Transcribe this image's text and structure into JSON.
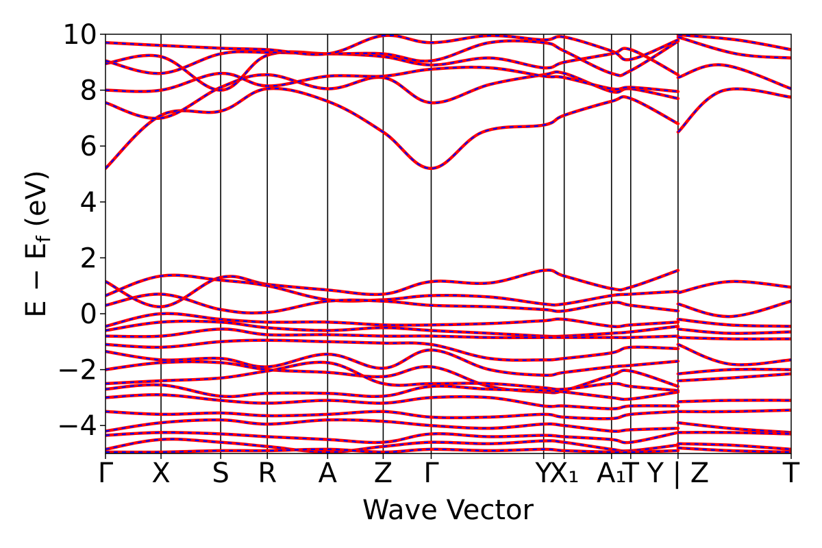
{
  "chart_data": {
    "type": "line",
    "title": "",
    "xlabel": "Wave Vector",
    "ylabel": "E − E_f (eV)",
    "ylabel_main": "E − E",
    "ylabel_sub": "f",
    "ylabel_tail": " (eV)",
    "ylim": [
      -5,
      10
    ],
    "yticks": [
      -4,
      -2,
      0,
      2,
      4,
      6,
      8,
      10
    ],
    "ytick_labels": [
      "−4",
      "−2",
      "0",
      "2",
      "4",
      "6",
      "8",
      "10"
    ],
    "grid": false,
    "legend": "none",
    "line_style": "red solid bands overlaid with blue dashed bands",
    "colors": {
      "band_solid": "#ff0000",
      "band_dashed": "#0000ff",
      "axes": "#000000"
    },
    "x_range": [
      0,
      100
    ],
    "kpoints": [
      {
        "label": "Γ",
        "x": 0
      },
      {
        "label": "X",
        "x": 8.1
      },
      {
        "label": "S",
        "x": 16.8
      },
      {
        "label": "R",
        "x": 23.6
      },
      {
        "label": "A",
        "x": 32.4
      },
      {
        "label": "Z",
        "x": 40.5
      },
      {
        "label": "Γ",
        "x": 47.5
      },
      {
        "label": "Y",
        "x": 63.9
      },
      {
        "label": "X₁",
        "x": 66.9
      },
      {
        "label": "A₁",
        "x": 73.8
      },
      {
        "label": "T",
        "x": 76.6
      },
      {
        "label": "Y | Z",
        "x": 83.5
      },
      {
        "label": "T",
        "x": 100
      }
    ],
    "series": [
      {
        "x": [
          0,
          8.1,
          16.8,
          23.6,
          32.4,
          40.5,
          47.5,
          55,
          63.9,
          66.9,
          73.8,
          76.6,
          83.5
        ],
        "y": [
          5.2,
          7.1,
          7.25,
          8.05,
          7.6,
          6.5,
          5.2,
          6.5,
          6.75,
          7.1,
          7.6,
          7.7,
          6.8
        ]
      },
      {
        "x": [
          83.5,
          90,
          100
        ],
        "y": [
          6.5,
          7.98,
          7.75
        ]
      },
      {
        "x": [
          0,
          8.1,
          16.8,
          23.6,
          32.4,
          40.5,
          47.5,
          56,
          63.9,
          66.9,
          73.8,
          76.6,
          83.5
        ],
        "y": [
          7.55,
          7.0,
          8.1,
          8.55,
          8.05,
          8.45,
          7.55,
          8.2,
          8.55,
          8.6,
          7.95,
          8.05,
          7.7
        ]
      },
      {
        "x": [
          83.5,
          90,
          100
        ],
        "y": [
          8.45,
          8.9,
          8.05
        ]
      },
      {
        "x": [
          0,
          8.1,
          16.8,
          23.6,
          32.4,
          40.5,
          47.5,
          56,
          63.9,
          66.9,
          73.8,
          76.6,
          83.5
        ],
        "y": [
          8.0,
          8.0,
          8.6,
          8.15,
          8.5,
          8.5,
          8.75,
          8.8,
          8.5,
          8.45,
          8.05,
          8.1,
          7.95
        ]
      },
      {
        "x": [
          0,
          8.1,
          16.8,
          23.6,
          32.4,
          40.5,
          47.5,
          56,
          63.9,
          66.9,
          73.8,
          76.6,
          83.5
        ],
        "y": [
          8.95,
          9.2,
          8.0,
          9.25,
          9.3,
          9.2,
          8.9,
          9.15,
          8.8,
          9.0,
          9.3,
          9.45,
          8.55
        ]
      },
      {
        "x": [
          83.5,
          92,
          100
        ],
        "y": [
          9.9,
          9.3,
          9.15
        ]
      },
      {
        "x": [
          0,
          8.1,
          16.8,
          23.6,
          32.4,
          40.5,
          47.5,
          56,
          63.9,
          66.9,
          73.8,
          76.6,
          83.5
        ],
        "y": [
          9.05,
          8.6,
          9.3,
          9.35,
          9.3,
          9.3,
          9.05,
          9.7,
          9.7,
          9.4,
          8.6,
          8.7,
          9.75
        ]
      },
      {
        "x": [
          0,
          8.1,
          16.8,
          23.6,
          32.4,
          40.5,
          47.5,
          56,
          63.9,
          66.9,
          73.8,
          76.6,
          83.5
        ],
        "y": [
          9.7,
          9.6,
          9.5,
          9.45,
          9.3,
          9.95,
          9.7,
          9.95,
          9.8,
          9.9,
          9.4,
          9.1,
          9.8
        ]
      },
      {
        "x": [
          83.5,
          92,
          100
        ],
        "y": [
          9.98,
          9.8,
          9.45
        ]
      },
      {
        "x": [
          0,
          8.1,
          16.8,
          23.6,
          32.4,
          40.5,
          47.5,
          56,
          63.9,
          66.9,
          73.8,
          76.6,
          83.5
        ],
        "y": [
          1.15,
          0.25,
          1.3,
          1.05,
          0.85,
          0.7,
          1.15,
          1.1,
          1.55,
          1.35,
          0.9,
          0.95,
          1.55
        ]
      },
      {
        "x": [
          83.5,
          91,
          100
        ],
        "y": [
          0.75,
          1.15,
          0.95
        ]
      },
      {
        "x": [
          0,
          8.1,
          16.8,
          23.6,
          32.4,
          40.5,
          47.5,
          56,
          63.9,
          66.9,
          73.8,
          76.6,
          83.5
        ],
        "y": [
          0.65,
          1.35,
          1.2,
          1.0,
          0.5,
          0.5,
          0.65,
          0.6,
          0.35,
          0.35,
          0.65,
          0.7,
          0.8
        ]
      },
      {
        "x": [
          83.5,
          91,
          100
        ],
        "y": [
          0.35,
          -0.1,
          0.45
        ]
      },
      {
        "x": [
          0,
          8.1,
          16.8,
          23.6,
          32.4,
          40.5,
          47.5,
          56,
          63.9,
          66.9,
          73.8,
          76.6,
          83.5
        ],
        "y": [
          0.3,
          0.7,
          0.15,
          0.05,
          0.45,
          0.45,
          0.3,
          0.25,
          0.15,
          0.1,
          0.4,
          0.3,
          0.1
        ]
      },
      {
        "x": [
          0,
          8.1,
          16.8,
          23.6,
          32.4,
          40.5,
          47.5,
          56,
          63.9,
          66.9,
          73.8,
          76.6,
          83.5
        ],
        "y": [
          -0.45,
          0.0,
          -0.2,
          -0.3,
          -0.3,
          -0.4,
          -0.4,
          -0.35,
          -0.25,
          -0.2,
          -0.45,
          -0.4,
          -0.3
        ]
      },
      {
        "x": [
          83.5,
          91,
          100
        ],
        "y": [
          -0.2,
          -0.4,
          -0.45
        ]
      },
      {
        "x": [
          0,
          8.1,
          16.8,
          23.6,
          32.4,
          40.5,
          47.5,
          56,
          63.9,
          66.9,
          73.8,
          76.6,
          83.5
        ],
        "y": [
          -0.6,
          -0.3,
          -0.3,
          -0.5,
          -0.6,
          -0.5,
          -0.6,
          -0.7,
          -0.8,
          -0.8,
          -0.7,
          -0.65,
          -0.45
        ]
      },
      {
        "x": [
          83.5,
          91,
          100
        ],
        "y": [
          -0.55,
          -0.7,
          -0.65
        ]
      },
      {
        "x": [
          0,
          8.1,
          16.8,
          23.6,
          32.4,
          40.5,
          47.5,
          56,
          63.9,
          66.9,
          73.8,
          76.6,
          83.5
        ],
        "y": [
          -0.8,
          -0.8,
          -0.55,
          -0.75,
          -0.75,
          -0.8,
          -0.8,
          -0.85,
          -0.85,
          -0.85,
          -0.85,
          -0.85,
          -0.8
        ]
      },
      {
        "x": [
          83.5,
          91,
          100
        ],
        "y": [
          -0.85,
          -0.9,
          -0.9
        ]
      },
      {
        "x": [
          0,
          8.1,
          16.8,
          23.6,
          32.4,
          40.5,
          47.5,
          56,
          63.9,
          66.9,
          73.8,
          76.6,
          83.5
        ],
        "y": [
          -1.1,
          -1.2,
          -1.0,
          -0.95,
          -1.0,
          -1.05,
          -1.1,
          -1.6,
          -1.65,
          -1.6,
          -1.4,
          -1.2,
          -1.25
        ]
      },
      {
        "x": [
          83.5,
          91,
          100
        ],
        "y": [
          -1.1,
          -1.8,
          -1.65
        ]
      },
      {
        "x": [
          0,
          8.1,
          16.8,
          23.6,
          32.4,
          40.5,
          47.5,
          56,
          63.9,
          66.9,
          73.8,
          76.6,
          83.5
        ],
        "y": [
          -1.35,
          -1.65,
          -1.6,
          -1.9,
          -1.45,
          -1.95,
          -1.3,
          -2.0,
          -2.2,
          -2.1,
          -1.9,
          -1.85,
          -1.7
        ]
      },
      {
        "x": [
          83.5,
          91,
          100
        ],
        "y": [
          -2.15,
          -2.0,
          -2.0
        ]
      },
      {
        "x": [
          0,
          8.1,
          16.8,
          23.6,
          32.4,
          40.5,
          47.5,
          56,
          63.9,
          66.9,
          73.8,
          76.6,
          83.5
        ],
        "y": [
          -2.0,
          -1.75,
          -1.75,
          -2.0,
          -2.1,
          -2.25,
          -1.9,
          -2.6,
          -2.8,
          -2.75,
          -2.2,
          -2.05,
          -2.6
        ]
      },
      {
        "x": [
          0,
          8.1,
          16.8,
          23.6,
          32.4,
          40.5,
          47.5,
          56,
          63.9,
          66.9,
          73.8,
          76.6,
          83.5
        ],
        "y": [
          -2.5,
          -2.4,
          -2.3,
          -2.05,
          -1.75,
          -2.5,
          -2.5,
          -2.5,
          -2.65,
          -2.7,
          -2.5,
          -2.6,
          -2.75
        ]
      },
      {
        "x": [
          83.5,
          91,
          100
        ],
        "y": [
          -2.4,
          -2.3,
          -2.15
        ]
      },
      {
        "x": [
          0,
          8.1,
          16.8,
          23.6,
          32.4,
          40.5,
          47.5,
          56,
          63.9,
          66.9,
          73.8,
          76.6,
          83.5
        ],
        "y": [
          -2.7,
          -2.55,
          -2.95,
          -2.85,
          -2.85,
          -2.95,
          -2.6,
          -2.7,
          -2.75,
          -2.8,
          -3.0,
          -3.05,
          -2.8
        ]
      },
      {
        "x": [
          0,
          8.1,
          16.8,
          23.6,
          32.4,
          40.5,
          47.5,
          56,
          63.9,
          66.9,
          73.8,
          76.6,
          83.5
        ],
        "y": [
          -3.0,
          -2.9,
          -3.1,
          -3.2,
          -3.1,
          -3.2,
          -3.0,
          -3.0,
          -3.3,
          -3.3,
          -3.4,
          -3.3,
          -3.3
        ]
      },
      {
        "x": [
          83.5,
          91,
          100
        ],
        "y": [
          -3.15,
          -3.1,
          -3.1
        ]
      },
      {
        "x": [
          0,
          8.1,
          16.8,
          23.6,
          32.4,
          40.5,
          47.5,
          56,
          63.9,
          66.9,
          73.8,
          76.6,
          83.5
        ],
        "y": [
          -3.5,
          -3.6,
          -3.55,
          -3.65,
          -3.6,
          -3.5,
          -3.7,
          -3.7,
          -3.6,
          -3.7,
          -3.75,
          -3.6,
          -3.5
        ]
      },
      {
        "x": [
          83.5,
          91,
          100
        ],
        "y": [
          -3.5,
          -3.5,
          -3.45
        ]
      },
      {
        "x": [
          0,
          8.1,
          16.8,
          23.6,
          32.4,
          40.5,
          47.5,
          56,
          63.9,
          66.9,
          73.8,
          76.6,
          83.5
        ],
        "y": [
          -4.2,
          -3.9,
          -3.8,
          -3.95,
          -3.8,
          -3.85,
          -4.0,
          -4.1,
          -3.95,
          -4.0,
          -4.2,
          -4.15,
          -4.1
        ]
      },
      {
        "x": [
          83.5,
          91,
          100
        ],
        "y": [
          -3.9,
          -4.1,
          -4.25
        ]
      },
      {
        "x": [
          0,
          8.1,
          16.8,
          23.6,
          32.4,
          40.5,
          47.5,
          56,
          63.9,
          66.9,
          73.8,
          76.6,
          83.5
        ],
        "y": [
          -4.35,
          -4.25,
          -4.3,
          -4.4,
          -4.5,
          -4.6,
          -4.3,
          -4.4,
          -4.35,
          -4.4,
          -4.5,
          -4.6,
          -4.25
        ]
      },
      {
        "x": [
          83.5,
          91,
          100
        ],
        "y": [
          -4.25,
          -4.25,
          -4.3
        ]
      },
      {
        "x": [
          0,
          8.1,
          16.8,
          23.6,
          32.4,
          40.5,
          47.5,
          56,
          63.9,
          66.9,
          73.8,
          76.6,
          83.5
        ],
        "y": [
          -4.85,
          -4.5,
          -4.6,
          -4.75,
          -4.95,
          -4.75,
          -4.6,
          -4.65,
          -4.55,
          -4.6,
          -4.85,
          -4.9,
          -4.7
        ]
      },
      {
        "x": [
          83.5,
          91,
          100
        ],
        "y": [
          -4.65,
          -4.7,
          -4.85
        ]
      },
      {
        "x": [
          0,
          8.1,
          16.8,
          23.6,
          32.4,
          40.5,
          47.5,
          56,
          63.9,
          66.9,
          73.8,
          76.6,
          83.5
        ],
        "y": [
          -4.95,
          -4.95,
          -4.9,
          -4.9,
          -4.85,
          -4.95,
          -4.85,
          -4.9,
          -4.85,
          -4.9,
          -4.95,
          -4.95,
          -4.9
        ]
      },
      {
        "x": [
          83.5,
          91,
          100
        ],
        "y": [
          -4.8,
          -4.9,
          -4.95
        ]
      }
    ]
  }
}
